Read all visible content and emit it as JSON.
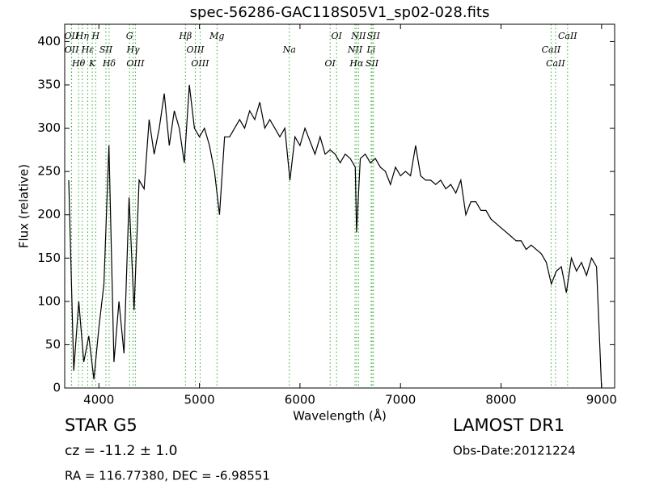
{
  "chart_data": {
    "type": "line",
    "title": "spec-56286-GAC118S05V1_sp02-028.fits",
    "x_label": "Wavelength (Å)",
    "y_label": "Flux (relative)",
    "xlim": [
      3660,
      9130
    ],
    "ylim": [
      0,
      420
    ],
    "xticks": [
      4000,
      5000,
      6000,
      7000,
      8000,
      9000
    ],
    "yticks": [
      0,
      50,
      100,
      150,
      200,
      250,
      300,
      350,
      400
    ],
    "line_color": "#000000",
    "marker_color": "#33aa33",
    "x": [
      3700,
      3750,
      3800,
      3850,
      3900,
      3950,
      4000,
      4050,
      4100,
      4150,
      4200,
      4250,
      4300,
      4350,
      4400,
      4450,
      4500,
      4550,
      4600,
      4650,
      4700,
      4750,
      4800,
      4850,
      4900,
      4950,
      5000,
      5050,
      5100,
      5150,
      5200,
      5250,
      5300,
      5350,
      5400,
      5450,
      5500,
      5550,
      5600,
      5650,
      5700,
      5750,
      5800,
      5850,
      5900,
      5950,
      6000,
      6050,
      6100,
      6150,
      6200,
      6250,
      6300,
      6350,
      6400,
      6450,
      6500,
      6550,
      6563,
      6600,
      6650,
      6700,
      6750,
      6800,
      6850,
      6900,
      6950,
      7000,
      7050,
      7100,
      7150,
      7200,
      7250,
      7300,
      7350,
      7400,
      7450,
      7500,
      7550,
      7600,
      7650,
      7700,
      7750,
      7800,
      7850,
      7900,
      7950,
      8000,
      8050,
      8100,
      8150,
      8200,
      8250,
      8300,
      8350,
      8400,
      8450,
      8500,
      8550,
      8600,
      8650,
      8700,
      8750,
      8800,
      8850,
      8900,
      8950,
      9000
    ],
    "series": [
      {
        "name": "Flux",
        "values": [
          240,
          20,
          100,
          30,
          60,
          10,
          70,
          120,
          280,
          30,
          100,
          40,
          220,
          90,
          240,
          230,
          310,
          270,
          300,
          340,
          280,
          320,
          300,
          260,
          350,
          300,
          290,
          300,
          280,
          250,
          200,
          290,
          290,
          300,
          310,
          300,
          320,
          310,
          330,
          300,
          310,
          300,
          290,
          300,
          240,
          290,
          280,
          300,
          285,
          270,
          290,
          270,
          275,
          270,
          260,
          270,
          265,
          255,
          180,
          265,
          270,
          260,
          265,
          255,
          250,
          235,
          255,
          245,
          250,
          245,
          280,
          245,
          240,
          240,
          235,
          240,
          230,
          235,
          225,
          240,
          200,
          215,
          215,
          205,
          205,
          195,
          190,
          185,
          180,
          175,
          170,
          170,
          160,
          165,
          160,
          155,
          145,
          120,
          135,
          140,
          110,
          150,
          135,
          145,
          130,
          150,
          140,
          0
        ]
      }
    ],
    "line_markers": [
      {
        "wavelength": 3727,
        "label": "OII"
      },
      {
        "wavelength": 3729,
        "label": "OII"
      },
      {
        "wavelength": 3798,
        "label": "Hθ"
      },
      {
        "wavelength": 3835,
        "label": "Hη"
      },
      {
        "wavelength": 3889,
        "label": "Hε"
      },
      {
        "wavelength": 3934,
        "label": "K"
      },
      {
        "wavelength": 3968,
        "label": "H"
      },
      {
        "wavelength": 4070,
        "label": "SII"
      },
      {
        "wavelength": 4102,
        "label": "Hδ"
      },
      {
        "wavelength": 4305,
        "label": "G"
      },
      {
        "wavelength": 4340,
        "label": "Hγ"
      },
      {
        "wavelength": 4363,
        "label": "OIII"
      },
      {
        "wavelength": 4861,
        "label": "Hβ"
      },
      {
        "wavelength": 4959,
        "label": "OIII"
      },
      {
        "wavelength": 5007,
        "label": "OIII"
      },
      {
        "wavelength": 5175,
        "label": "Mg"
      },
      {
        "wavelength": 5894,
        "label": "Na"
      },
      {
        "wavelength": 6300,
        "label": "OI"
      },
      {
        "wavelength": 6364,
        "label": "OI"
      },
      {
        "wavelength": 6548,
        "label": "NII"
      },
      {
        "wavelength": 6563,
        "label": "Hα"
      },
      {
        "wavelength": 6583,
        "label": "NII"
      },
      {
        "wavelength": 6708,
        "label": "Li"
      },
      {
        "wavelength": 6717,
        "label": "SII"
      },
      {
        "wavelength": 6731,
        "label": "SII"
      },
      {
        "wavelength": 8498,
        "label": "CaII"
      },
      {
        "wavelength": 8542,
        "label": "CaII"
      },
      {
        "wavelength": 8662,
        "label": "CaII"
      }
    ],
    "annotations": {
      "class": "STAR   G5",
      "cz": "cz = -11.2 ± 1.0",
      "coords": "RA = 116.77380, DEC = -6.98551",
      "survey": "LAMOST DR1",
      "obs_date": "Obs-Date:20121224"
    }
  }
}
